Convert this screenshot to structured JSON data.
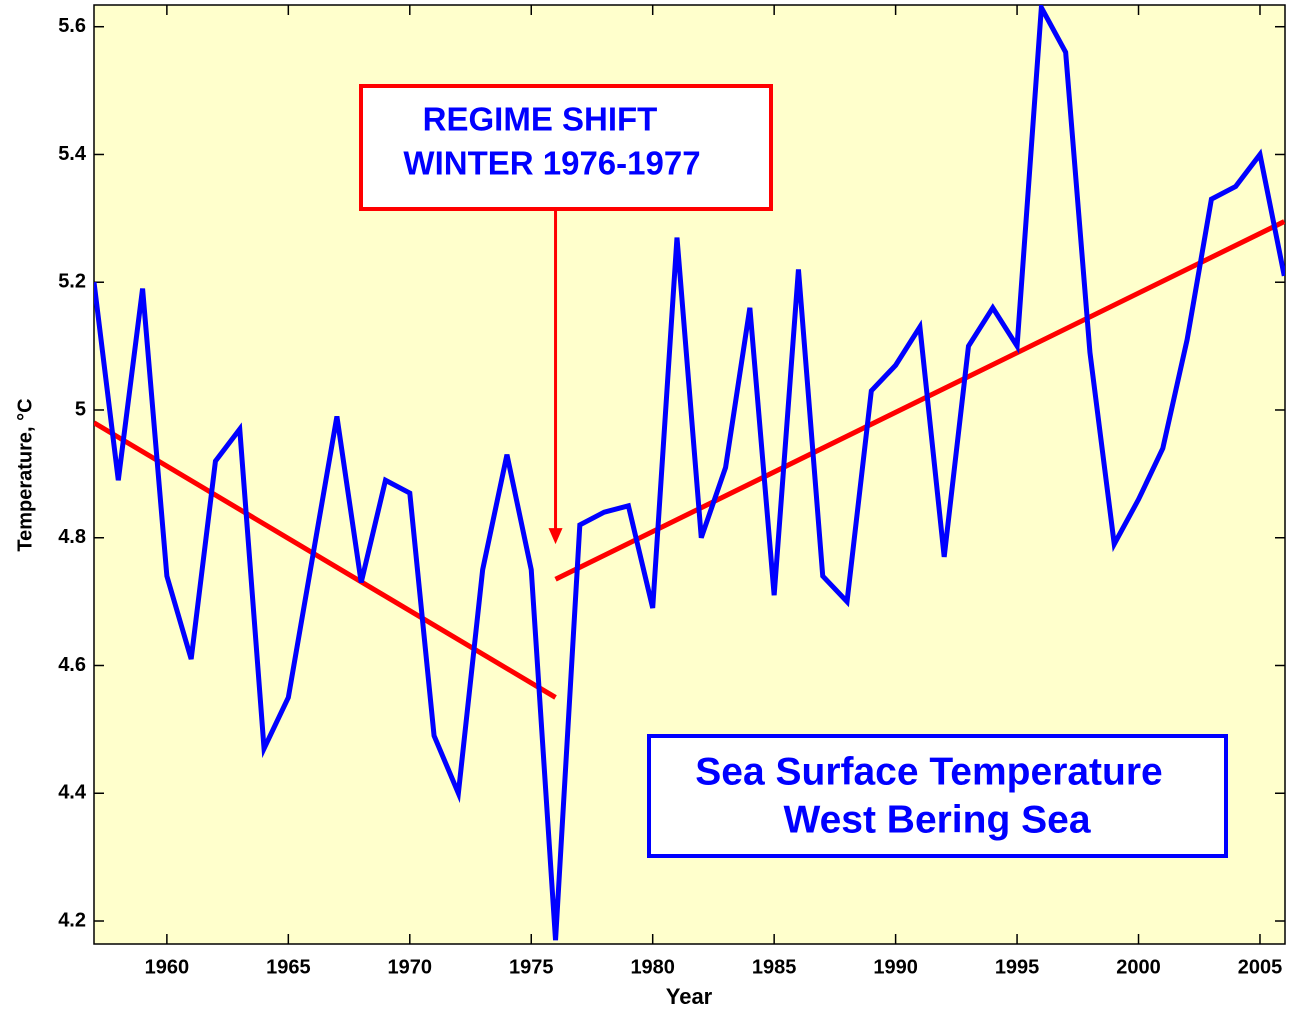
{
  "chart_data": {
    "type": "line",
    "x": [
      1957,
      1958,
      1959,
      1960,
      1961,
      1962,
      1963,
      1964,
      1965,
      1966,
      1967,
      1968,
      1969,
      1970,
      1971,
      1972,
      1973,
      1974,
      1975,
      1976,
      1977,
      1978,
      1979,
      1980,
      1981,
      1982,
      1983,
      1984,
      1985,
      1986,
      1987,
      1988,
      1989,
      1990,
      1991,
      1992,
      1993,
      1994,
      1995,
      1996,
      1997,
      1998,
      1999,
      2000,
      2001,
      2002,
      2003,
      2004,
      2005,
      2006
    ],
    "series": [
      {
        "color": "#0000ff",
        "values": [
          5.2,
          4.89,
          5.19,
          4.74,
          4.61,
          4.92,
          4.97,
          4.47,
          4.55,
          4.77,
          4.99,
          4.73,
          4.89,
          4.87,
          4.49,
          4.4,
          4.75,
          4.93,
          4.75,
          4.17,
          4.82,
          4.84,
          4.85,
          4.69,
          5.27,
          4.8,
          4.91,
          5.16,
          4.71,
          5.22,
          4.74,
          4.7,
          5.03,
          5.07,
          5.13,
          4.77,
          5.1,
          5.16,
          5.1,
          5.63,
          5.56,
          5.09,
          4.79,
          4.86,
          4.94,
          5.11,
          5.33,
          5.35,
          5.4,
          5.21
        ]
      }
    ],
    "trend_lines": [
      {
        "color": "#ff0000",
        "x": [
          1957,
          1976
        ],
        "values": [
          4.98,
          4.55
        ]
      },
      {
        "color": "#ff0000",
        "x": [
          1976,
          2006
        ],
        "values": [
          4.735,
          5.295
        ]
      }
    ],
    "xlabel": "Year",
    "ylabel": "Temperature, °C",
    "xlim": [
      1957,
      2006.03
    ],
    "ylim": [
      4.164,
      5.634
    ],
    "xticks": [
      1960,
      1965,
      1970,
      1975,
      1980,
      1985,
      1990,
      1995,
      2000,
      2005
    ],
    "yticks": [
      4.2,
      4.4,
      4.6,
      4.8,
      5,
      5.2,
      5.4,
      5.6
    ],
    "annotations": [
      {
        "text": [
          "REGIME SHIFT",
          "WINTER 1976-1977"
        ],
        "color": "#ff0000",
        "x": 1976,
        "y": 4.79
      }
    ],
    "caption": [
      "Sea Surface Temperature",
      "West Bering Sea"
    ]
  }
}
